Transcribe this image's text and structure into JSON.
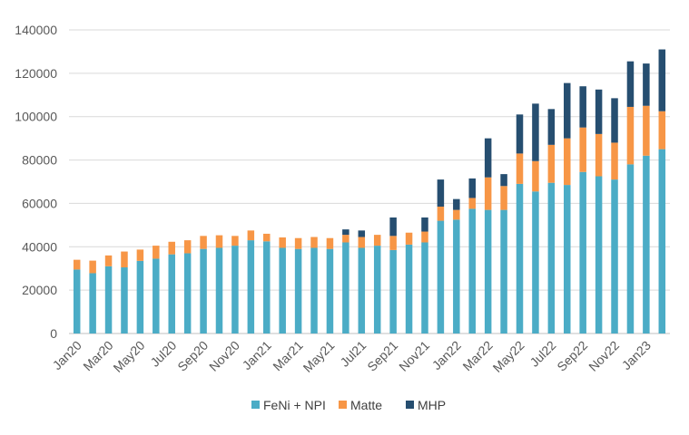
{
  "chart_data": {
    "type": "bar",
    "stacked": true,
    "title": "",
    "xlabel": "",
    "ylabel": "",
    "ylim": [
      0,
      140000
    ],
    "yticks": [
      0,
      20000,
      40000,
      60000,
      80000,
      100000,
      120000,
      140000
    ],
    "grid": true,
    "legend_position": "bottom",
    "categories": [
      "Jan20",
      "Feb20",
      "Mar20",
      "Apr20",
      "May20",
      "Jun20",
      "Jul20",
      "Aug20",
      "Sep20",
      "Oct20",
      "Nov20",
      "Dec20",
      "Jan21",
      "Feb21",
      "Mar21",
      "Apr21",
      "May21",
      "Jun21",
      "Jul21",
      "Aug21",
      "Sep21",
      "Oct21",
      "Nov21",
      "Dec21",
      "Jan22",
      "Feb22",
      "Mar22",
      "Apr22",
      "May22",
      "Jun22",
      "Jul22",
      "Aug22",
      "Sep22",
      "Oct22",
      "Nov22",
      "Dec22",
      "Jan23",
      "Feb23"
    ],
    "xtick_labels": [
      "Jan20",
      "Mar20",
      "May20",
      "Jul20",
      "Sep20",
      "Nov20",
      "Jan21",
      "Mar21",
      "May21",
      "Jul21",
      "Sep21",
      "Nov21",
      "Jan22",
      "Mar22",
      "May22",
      "Jul22",
      "Sep22",
      "Nov22",
      "Jan23"
    ],
    "series": [
      {
        "name": "FeNi + NPI",
        "color": "#4BACC6",
        "values": [
          29500,
          27800,
          31000,
          30500,
          33500,
          34500,
          36500,
          37000,
          39000,
          39500,
          40500,
          43000,
          42500,
          39500,
          39000,
          39500,
          39000,
          42000,
          39500,
          40500,
          38500,
          41000,
          42000,
          52000,
          52500,
          57500,
          57000,
          57000,
          69000,
          65500,
          69500,
          68500,
          74500,
          72500,
          71000,
          78000,
          82000,
          85000
        ]
      },
      {
        "name": "Matte",
        "color": "#F79646",
        "values": [
          4500,
          5800,
          5000,
          7300,
          5200,
          6000,
          5800,
          6000,
          6000,
          5800,
          4500,
          4500,
          3500,
          4800,
          5000,
          5000,
          5000,
          3500,
          5000,
          5000,
          6500,
          5500,
          5000,
          6500,
          4500,
          5000,
          15000,
          11000,
          14000,
          14000,
          17500,
          21500,
          20500,
          19500,
          17000,
          26500,
          23000,
          17500
        ]
      },
      {
        "name": "MHP",
        "color": "#264E70",
        "values": [
          0,
          0,
          0,
          0,
          0,
          0,
          0,
          0,
          0,
          0,
          0,
          0,
          0,
          0,
          0,
          0,
          0,
          2500,
          3000,
          0,
          8500,
          0,
          6500,
          12500,
          5000,
          9000,
          18000,
          5500,
          18000,
          26500,
          16500,
          25500,
          19000,
          20500,
          20500,
          21000,
          19500,
          28500
        ]
      }
    ]
  }
}
